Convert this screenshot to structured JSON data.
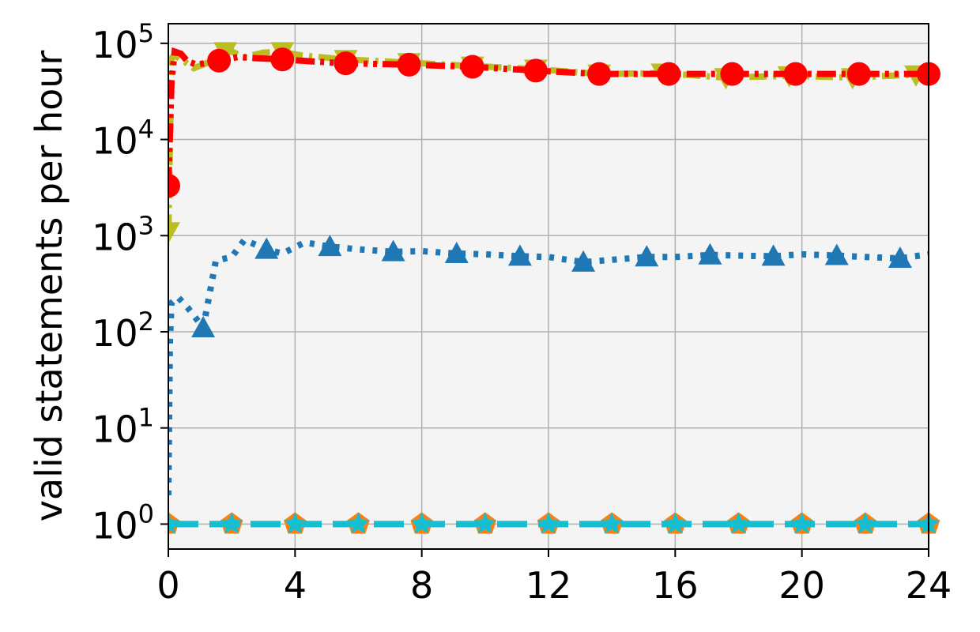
{
  "chart_data": {
    "type": "line",
    "title": "",
    "xlabel": "",
    "ylabel": "valid statements per hour",
    "xlim": [
      0,
      24
    ],
    "ylim": [
      0.55,
      160000
    ],
    "yscale": "log",
    "grid": true,
    "x_ticks": [
      0,
      4,
      8,
      12,
      16,
      20,
      24
    ],
    "x_tick_labels": [
      "0",
      "4",
      "8",
      "12",
      "16",
      "20",
      "24"
    ],
    "y_ticks": [
      1,
      10,
      100,
      1000,
      10000,
      100000
    ],
    "y_tick_bases": [
      "10",
      "10",
      "10",
      "10",
      "10",
      "10"
    ],
    "y_tick_exponents": [
      "0",
      "1",
      "2",
      "3",
      "4",
      "5"
    ],
    "colors": {
      "plot_bg": "#f4f4f4",
      "grid": "#b0b0b0"
    },
    "series": [
      {
        "color": "#1f77b4",
        "line": "dotted",
        "marker": "triangle-up",
        "x": [
          0,
          0.05,
          0.1,
          0.3,
          0.6,
          1.1,
          1.5,
          2.0,
          2.4,
          3.1,
          3.6,
          4.3,
          5.1,
          6.0,
          7.1,
          8.0,
          9.1,
          10.0,
          11.1,
          12.0,
          13.1,
          14.0,
          15.1,
          16.0,
          17.1,
          18.0,
          19.1,
          20.0,
          21.1,
          22.0,
          23.1,
          24.0
        ],
        "y": [
          2,
          80,
          200,
          230,
          180,
          110,
          550,
          600,
          900,
          720,
          650,
          850,
          770,
          720,
          680,
          690,
          650,
          640,
          610,
          600,
          530,
          560,
          600,
          600,
          630,
          620,
          610,
          640,
          620,
          600,
          580,
          640
        ],
        "marker_x": [
          1.1,
          3.1,
          5.1,
          7.1,
          9.1,
          11.1,
          13.1,
          15.1,
          17.1,
          19.1,
          21.1,
          23.1
        ],
        "marker_y": [
          110,
          720,
          770,
          680,
          650,
          610,
          530,
          600,
          630,
          610,
          620,
          580
        ]
      },
      {
        "color": "#bcbd22",
        "line": "dashdot",
        "marker": "triangle-down",
        "x": [
          0,
          0.1,
          0.2,
          0.5,
          0.8,
          1.2,
          1.6,
          2.0,
          2.4,
          3.0,
          3.5,
          4.2,
          5.6,
          7.6,
          9.6,
          11.6,
          13.6,
          15.6,
          17.6,
          19.6,
          21.6,
          24.0
        ],
        "y": [
          1100,
          70000,
          75000,
          65000,
          55000,
          62000,
          78000,
          82000,
          72000,
          80000,
          82000,
          75000,
          68000,
          63000,
          58000,
          54000,
          48000,
          49000,
          44000,
          46000,
          44000,
          48000
        ],
        "marker_x": [
          0,
          1.8,
          3.6,
          5.6,
          7.6,
          9.6,
          11.6,
          13.6,
          15.6,
          17.6,
          19.6,
          21.6,
          23.6
        ],
        "marker_y": [
          1100,
          82000,
          82000,
          68000,
          63000,
          58000,
          54000,
          48000,
          49000,
          44000,
          46000,
          44000,
          47000
        ]
      },
      {
        "color": "#ff0000",
        "line": "dashdotdot",
        "marker": "circle",
        "x": [
          0,
          0.1,
          0.2,
          0.4,
          0.6,
          0.9,
          1.6,
          2.2,
          2.8,
          3.6,
          4.5,
          5.6,
          7.6,
          9.6,
          11.6,
          13.6,
          15.8,
          17.8,
          19.8,
          21.8,
          24.0
        ],
        "y": [
          3300,
          40000,
          82000,
          78000,
          65000,
          60000,
          66000,
          72000,
          70000,
          68000,
          65000,
          62000,
          60000,
          57000,
          52000,
          48000,
          48000,
          48000,
          48000,
          48000,
          48000
        ],
        "marker_x": [
          0,
          1.6,
          3.6,
          5.6,
          7.6,
          9.6,
          11.6,
          13.6,
          15.8,
          17.8,
          19.8,
          21.8,
          24.0
        ],
        "marker_y": [
          3300,
          66000,
          68000,
          62000,
          60000,
          57000,
          52000,
          48000,
          48000,
          48000,
          48000,
          48000,
          48000
        ]
      },
      {
        "color": "#ff7f0e",
        "line": "dashed",
        "marker": "pentagon",
        "x": [
          0,
          24
        ],
        "y": [
          1,
          1
        ],
        "marker_x": [
          0,
          2,
          4,
          6,
          8,
          10,
          12,
          14,
          16,
          18,
          20,
          22,
          24
        ],
        "marker_y": [
          1,
          1,
          1,
          1,
          1,
          1,
          1,
          1,
          1,
          1,
          1,
          1,
          1
        ]
      },
      {
        "color": "#17becf",
        "line": "dashed",
        "marker": "star",
        "x": [
          0,
          24
        ],
        "y": [
          1,
          1
        ],
        "marker_x": [
          0,
          2,
          4,
          6,
          8,
          10,
          12,
          14,
          16,
          18,
          20,
          22,
          24
        ],
        "marker_y": [
          1,
          1,
          1,
          1,
          1,
          1,
          1,
          1,
          1,
          1,
          1,
          1,
          1
        ]
      }
    ]
  }
}
